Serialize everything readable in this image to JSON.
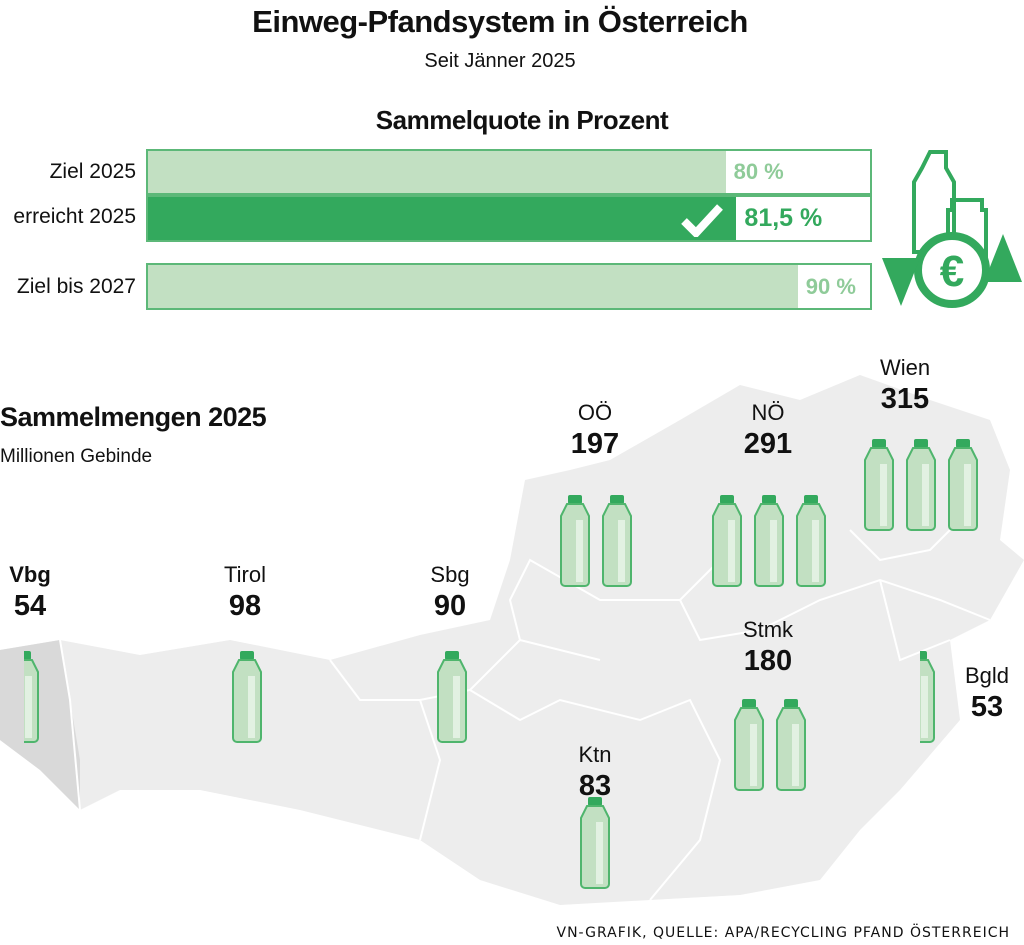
{
  "title": "Einweg-Pfandsystem in Österreich",
  "subtitle": "Seit Jänner 2025",
  "colors": {
    "dark_green": "#33a95d",
    "light_green": "#c2e0c2",
    "map_grey": "#ededed",
    "vbg_grey": "#d9d9d9"
  },
  "chart_data": [
    {
      "type": "bar",
      "title": "Sammelquote in Prozent",
      "xlim": [
        0,
        100
      ],
      "categories": [
        "Ziel 2025",
        "erreicht 2025",
        "Ziel bis 2027"
      ],
      "values": [
        80,
        81.5,
        90
      ],
      "value_labels": [
        "80 %",
        "81,5 %",
        "90 %"
      ],
      "highlight": "erreicht 2025",
      "icons": [
        "checkmark-icon",
        "bottle-euro-recycle-icon"
      ]
    },
    {
      "type": "map",
      "title": "Sammelmengen 2025",
      "unit": "Millionen Gebinde",
      "regions": [
        {
          "name": "Vbg",
          "value": 54,
          "value_label": "54"
        },
        {
          "name": "Tirol",
          "value": 98,
          "value_label": "98"
        },
        {
          "name": "Sbg",
          "value": 90,
          "value_label": "90"
        },
        {
          "name": "OÖ",
          "value": 197,
          "value_label": "197"
        },
        {
          "name": "NÖ",
          "value": 291,
          "value_label": "291"
        },
        {
          "name": "Wien",
          "value": 315,
          "value_label": "315"
        },
        {
          "name": "Stmk",
          "value": 180,
          "value_label": "180"
        },
        {
          "name": "Ktn",
          "value": 83,
          "value_label": "83"
        },
        {
          "name": "Bgld",
          "value": 53,
          "value_label": "53"
        }
      ]
    }
  ],
  "source": "VN-GRAFIK, QUELLE: APA/RECYCLING PFAND ÖSTERREICH"
}
